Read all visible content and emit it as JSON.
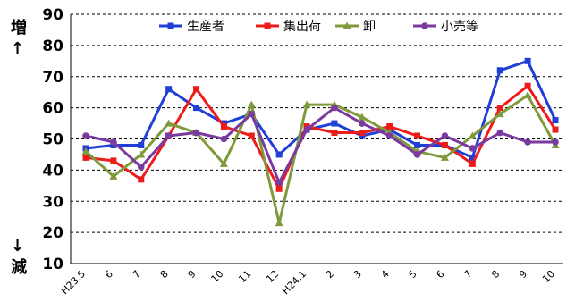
{
  "chart_data": {
    "type": "line",
    "categories": [
      "H23.5",
      "6",
      "7",
      "8",
      "9",
      "10",
      "11",
      "12",
      "H24.1",
      "2",
      "3",
      "4",
      "5",
      "6",
      "7",
      "8",
      "9",
      "10"
    ],
    "ylim": [
      10,
      90
    ],
    "yticks": [
      10,
      20,
      30,
      40,
      50,
      60,
      70,
      80,
      90
    ],
    "grid": true,
    "legend_position": "top",
    "side_labels": {
      "top": "増",
      "up_arrow": "↑",
      "down_arrow": "↓",
      "bottom": "減"
    },
    "series": [
      {
        "name": "生産者",
        "color": "#1f3fd6",
        "marker": "square",
        "values": [
          47,
          48,
          48,
          66,
          60,
          55,
          58,
          45,
          53,
          55,
          51,
          53,
          48,
          48,
          44,
          72,
          75,
          56
        ]
      },
      {
        "name": "集出荷",
        "color": "#ee1b1b",
        "marker": "square",
        "values": [
          44,
          43,
          37,
          51,
          66,
          54,
          51,
          34,
          54,
          52,
          52,
          54,
          51,
          48,
          42,
          60,
          67,
          53
        ]
      },
      {
        "name": "卸",
        "color": "#7f9a3a",
        "marker": "triangle",
        "values": [
          46,
          38,
          45,
          55,
          52,
          42,
          61,
          23,
          61,
          61,
          57,
          52,
          46,
          44,
          51,
          58,
          64,
          48
        ]
      },
      {
        "name": "小売等",
        "color": "#7a3aa0",
        "marker": "circle",
        "values": [
          51,
          49,
          41,
          51,
          52,
          50,
          58,
          36,
          53,
          60,
          55,
          51,
          45,
          51,
          47,
          52,
          49,
          49
        ]
      }
    ]
  }
}
